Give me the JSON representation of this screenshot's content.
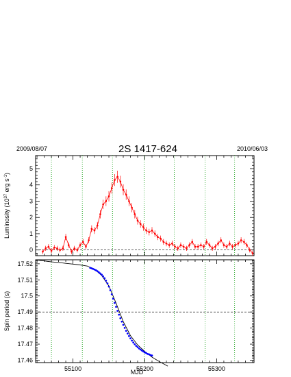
{
  "title": "2S 1417-624",
  "start_date": "2009/08/07",
  "end_date": "2010/06/03",
  "colors": {
    "luminosity": "#ff0000",
    "spin": "#0000ff",
    "model": "#000000",
    "vlines": "#009900",
    "refline": "#000000"
  },
  "chart_data": [
    {
      "type": "scatter",
      "panel": "luminosity",
      "ylabel": "Luminosity  (10^37 erg s^-1)",
      "ylabel_main": "Luminosity  (10",
      "ylabel_sup": "37",
      "ylabel_tail": " erg s",
      "ylabel_sup2": "-1",
      "ylabel_end": ")",
      "xlim": [
        55048,
        55352
      ],
      "ylim": [
        -0.35,
        5.8
      ],
      "yticks": [
        0,
        1,
        2,
        3,
        4,
        5
      ],
      "ref_line_y": 0,
      "vertical_lines_x": [
        55070,
        55113,
        55155,
        55199,
        55241,
        55284,
        55325
      ],
      "x": [
        55058,
        55062,
        55066,
        55070,
        55074,
        55078,
        55082,
        55086,
        55090,
        55094,
        55098,
        55102,
        55106,
        55110,
        55114,
        55118,
        55122,
        55126,
        55130,
        55134,
        55138,
        55142,
        55146,
        55150,
        55154,
        55158,
        55162,
        55166,
        55170,
        55174,
        55178,
        55182,
        55186,
        55190,
        55194,
        55198,
        55202,
        55206,
        55210,
        55214,
        55218,
        55222,
        55226,
        55230,
        55234,
        55238,
        55242,
        55246,
        55250,
        55254,
        55258,
        55262,
        55266,
        55270,
        55274,
        55278,
        55282,
        55286,
        55290,
        55294,
        55298,
        55302,
        55306,
        55310,
        55314,
        55318,
        55322,
        55326,
        55330,
        55334,
        55338,
        55342,
        55346,
        55350
      ],
      "y": [
        -0.1,
        0.1,
        0.2,
        -0.05,
        0.15,
        0.1,
        0.0,
        0.1,
        0.8,
        0.3,
        -0.1,
        0.1,
        0.0,
        0.3,
        0.5,
        0.2,
        0.6,
        1.3,
        1.2,
        1.5,
        2.2,
        2.8,
        3.0,
        3.3,
        3.8,
        4.3,
        4.5,
        4.2,
        3.7,
        3.4,
        3.0,
        2.6,
        2.2,
        1.8,
        1.6,
        1.4,
        1.2,
        1.1,
        1.2,
        1.0,
        0.8,
        0.7,
        0.5,
        0.4,
        0.3,
        0.4,
        0.2,
        0.1,
        0.3,
        0.2,
        0.1,
        0.3,
        0.5,
        0.2,
        0.2,
        0.3,
        0.2,
        0.5,
        0.3,
        0.1,
        0.2,
        0.4,
        0.6,
        0.3,
        0.2,
        0.4,
        0.2,
        0.3,
        0.4,
        0.6,
        0.5,
        0.3,
        0.0,
        -0.2
      ]
    },
    {
      "type": "scatter",
      "panel": "spin_period",
      "ylabel": "Spin period (s)",
      "xlabel": "MJD",
      "xlim": [
        55048,
        55352
      ],
      "ylim": [
        17.4585,
        17.5225
      ],
      "yticks": [
        17.46,
        17.47,
        17.48,
        17.49,
        17.5,
        17.51,
        17.52
      ],
      "ytick_labels": [
        "17.46",
        "17.47",
        "17.48",
        "17.49",
        "17.5",
        "17.51",
        "17.52"
      ],
      "xticks": [
        55100,
        55200,
        55300
      ],
      "xtick_labels": [
        "55100",
        "55200",
        "55300"
      ],
      "ref_line_y": 17.49,
      "vertical_lines_x": [
        55070,
        55113,
        55155,
        55199,
        55241,
        55284,
        55325
      ],
      "x": [
        55124,
        55126,
        55128,
        55130,
        55132,
        55134,
        55136,
        55138,
        55140,
        55142,
        55144,
        55146,
        55148,
        55150,
        55152,
        55154,
        55156,
        55158,
        55160,
        55162,
        55164,
        55166,
        55168,
        55170,
        55172,
        55174,
        55176,
        55178,
        55180,
        55182,
        55184,
        55186,
        55188,
        55190,
        55192,
        55194,
        55196,
        55198,
        55200,
        55202,
        55204,
        55206,
        55208,
        55210
      ],
      "y": [
        17.5175,
        17.5172,
        17.5168,
        17.5164,
        17.516,
        17.5154,
        17.5147,
        17.514,
        17.5132,
        17.5122,
        17.511,
        17.5095,
        17.5078,
        17.5058,
        17.5035,
        17.501,
        17.4983,
        17.4957,
        17.4932,
        17.4907,
        17.4883,
        17.4861,
        17.484,
        17.482,
        17.4801,
        17.4783,
        17.4766,
        17.475,
        17.4736,
        17.4722,
        17.471,
        17.4699,
        17.4689,
        17.4681,
        17.4673,
        17.4666,
        17.466,
        17.4654,
        17.4648,
        17.4644,
        17.4639,
        17.4636,
        17.4632,
        17.4629
      ],
      "model_x": [
        55048,
        55060,
        55070,
        55080,
        55090,
        55100,
        55110,
        55120,
        55130,
        55140,
        55150,
        55160,
        55170,
        55180,
        55190,
        55200,
        55210,
        55220,
        55230,
        55232
      ],
      "model_y": [
        17.5225,
        17.5218,
        17.5212,
        17.5208,
        17.5203,
        17.5198,
        17.5193,
        17.5186,
        17.5166,
        17.5127,
        17.5062,
        17.4955,
        17.484,
        17.4753,
        17.4695,
        17.4654,
        17.4619,
        17.4592,
        17.4568,
        17.4563
      ]
    }
  ]
}
